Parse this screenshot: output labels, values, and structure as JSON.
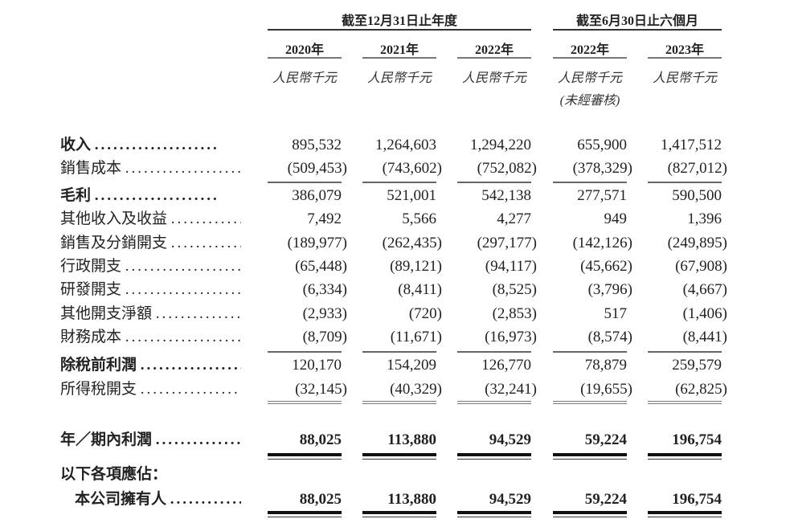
{
  "header": {
    "group_annual": "截至12月31日止年度",
    "group_interim": "截至6月30日止六個月",
    "columns": [
      {
        "year": "2020年",
        "unit": "人民幣千元",
        "note": ""
      },
      {
        "year": "2021年",
        "unit": "人民幣千元",
        "note": ""
      },
      {
        "year": "2022年",
        "unit": "人民幣千元",
        "note": ""
      },
      {
        "year": "2022年",
        "unit": "人民幣千元",
        "note": "(未經審核)"
      },
      {
        "year": "2023年",
        "unit": "人民幣千元",
        "note": ""
      }
    ]
  },
  "rows": [
    {
      "label": "收入",
      "bold_label": true,
      "values": [
        "895,532",
        "1,264,603",
        "1,294,220",
        "655,900",
        "1,417,512"
      ]
    },
    {
      "label": "銷售成本",
      "values": [
        "(509,453)",
        "(743,602)",
        "(752,082)",
        "(378,329)",
        "(827,012)"
      ]
    },
    {
      "label": "毛利",
      "bold_label": true,
      "values": [
        "386,079",
        "521,001",
        "542,138",
        "277,571",
        "590,500"
      ]
    },
    {
      "label": "其他收入及收益",
      "values": [
        "7,492",
        "5,566",
        "4,277",
        "949",
        "1,396"
      ]
    },
    {
      "label": "銷售及分銷開支",
      "values": [
        "(189,977)",
        "(262,435)",
        "(297,177)",
        "(142,126)",
        "(249,895)"
      ]
    },
    {
      "label": "行政開支",
      "values": [
        "(65,448)",
        "(89,121)",
        "(94,117)",
        "(45,662)",
        "(67,908)"
      ]
    },
    {
      "label": "研發開支",
      "values": [
        "(6,334)",
        "(8,411)",
        "(8,525)",
        "(3,796)",
        "(4,667)"
      ]
    },
    {
      "label": "其他開支淨額",
      "values": [
        "(2,933)",
        "(720)",
        "(2,853)",
        "517",
        "(1,406)"
      ]
    },
    {
      "label": "財務成本",
      "values": [
        "(8,709)",
        "(11,671)",
        "(16,973)",
        "(8,574)",
        "(8,441)"
      ]
    },
    {
      "label": "除稅前利潤",
      "bold_label": true,
      "values": [
        "120,170",
        "154,209",
        "126,770",
        "78,879",
        "259,579"
      ]
    },
    {
      "label": "所得稅開支",
      "values": [
        "(32,145)",
        "(40,329)",
        "(32,241)",
        "(19,655)",
        "(62,825)"
      ]
    },
    {
      "label": "年／期內利潤",
      "bold_label": true,
      "bold_values": true,
      "values": [
        "88,025",
        "113,880",
        "94,529",
        "59,224",
        "196,754"
      ]
    },
    {
      "label": "以下各項應佔：",
      "bold_label": true,
      "values": []
    },
    {
      "label": "本公司擁有人",
      "bold_label": true,
      "bold_values": true,
      "indent": true,
      "values": [
        "88,025",
        "113,880",
        "94,529",
        "59,224",
        "196,754"
      ]
    }
  ]
}
